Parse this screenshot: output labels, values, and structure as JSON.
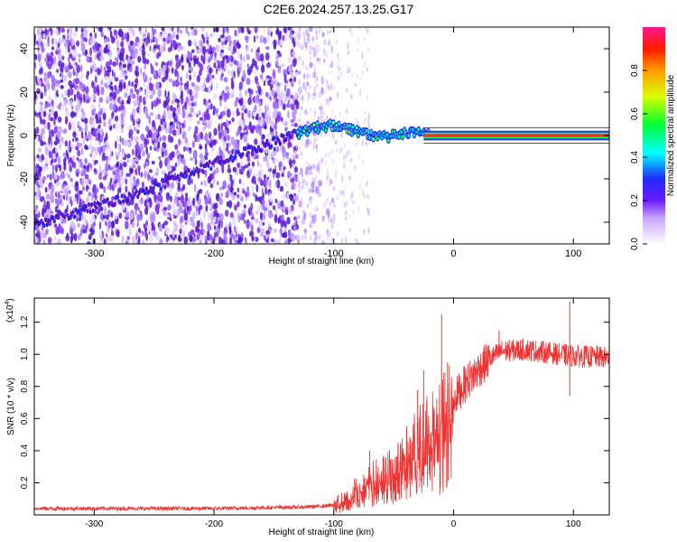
{
  "title": "C2E6.2024.257.13.25.G17",
  "colors": {
    "snr_line": "#ee3333",
    "spectrum_ridge": "#ff2a1a",
    "noise_purple": "#7a2ee8"
  },
  "chart_data": [
    {
      "type": "heatmap",
      "title": "",
      "xlabel": "Height of straight line (km)",
      "ylabel": "Frequency (Hz)",
      "xlim": [
        -350,
        130
      ],
      "ylim": [
        -50,
        50
      ],
      "x_ticks": [
        "-300",
        "-200",
        "-100",
        "0",
        "100"
      ],
      "x_tick_values": [
        -300,
        -200,
        -100,
        0,
        100
      ],
      "y_ticks": [
        "-40",
        "-20",
        "0",
        "20",
        "40"
      ],
      "y_tick_values": [
        -40,
        -20,
        0,
        20,
        40
      ],
      "ridge": {
        "x": [
          -350,
          -300,
          -250,
          -200,
          -150,
          -120,
          -100,
          -80,
          -60,
          -40,
          -20,
          0,
          50,
          100,
          130
        ],
        "y": [
          -41,
          -33,
          -24,
          -13,
          -3,
          3,
          5,
          2,
          -1,
          1,
          1,
          0,
          0,
          0,
          0
        ]
      },
      "colorbar": {
        "label": "Normalized spectral amplitude",
        "ticks": [
          "0.0",
          "0.2",
          "0.4",
          "0.6",
          "0.8"
        ],
        "tick_values": [
          0.0,
          0.2,
          0.4,
          0.6,
          0.8
        ],
        "range": [
          0,
          1
        ]
      }
    },
    {
      "type": "line",
      "title": "",
      "xlabel": "Height of straight line (km)",
      "ylabel": "SNR (10 * v/v)",
      "y_multiplier": "(x10",
      "y_multiplier_exp": "4",
      "y_multiplier_close": ")",
      "xlim": [
        -350,
        130
      ],
      "ylim": [
        0,
        1.35
      ],
      "x_ticks": [
        "-300",
        "-200",
        "-100",
        "0",
        "100"
      ],
      "x_tick_values": [
        -300,
        -200,
        -100,
        0,
        100
      ],
      "y_ticks": [
        "0.2",
        "0.4",
        "0.6",
        "0.8",
        "1.0",
        "1.2"
      ],
      "y_tick_values": [
        0.2,
        0.4,
        0.6,
        0.8,
        1.0,
        1.2
      ],
      "envelope": {
        "x": [
          -350,
          -300,
          -200,
          -120,
          -100,
          -90,
          -80,
          -70,
          -60,
          -50,
          -40,
          -30,
          -20,
          -10,
          0,
          10,
          20,
          30,
          40,
          60,
          80,
          100,
          130
        ],
        "y": [
          0.04,
          0.04,
          0.04,
          0.05,
          0.06,
          0.09,
          0.15,
          0.22,
          0.22,
          0.27,
          0.36,
          0.45,
          0.52,
          0.6,
          0.72,
          0.82,
          0.9,
          0.97,
          1.02,
          1.03,
          1.01,
          0.99,
          0.98
        ]
      },
      "spikes": [
        {
          "x": -70,
          "y": 0.4
        },
        {
          "x": -30,
          "y": 0.78
        },
        {
          "x": -25,
          "y": 0.9
        },
        {
          "x": -10,
          "y": 1.25
        },
        {
          "x": -5,
          "y": 0.95
        },
        {
          "x": 38,
          "y": 1.15
        },
        {
          "x": 97,
          "y": 1.33
        },
        {
          "x": 97,
          "y": 0.74
        }
      ]
    }
  ]
}
